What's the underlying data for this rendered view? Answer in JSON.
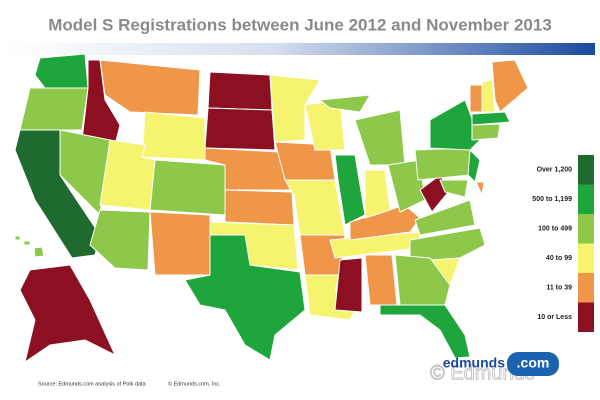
{
  "title": "Model S Registrations between June 2012 and November 2013",
  "legend": [
    {
      "label": "Over 1,200",
      "color": "#1f6b2f"
    },
    {
      "label": "500 to 1,199",
      "color": "#1ea63c"
    },
    {
      "label": "100 to 499",
      "color": "#8dc84a"
    },
    {
      "label": "40 to 99",
      "color": "#f6f36f"
    },
    {
      "label": "11 to 39",
      "color": "#ef9648"
    },
    {
      "label": "10 or Less",
      "color": "#8c1022"
    }
  ],
  "source": "Source: Edmunds.com analysis of Polk data",
  "copyright": "© Edmunds.com, Inc.",
  "watermark": "© Edmunds",
  "logo": {
    "name": "edmunds",
    "suffix": ".com"
  }
}
